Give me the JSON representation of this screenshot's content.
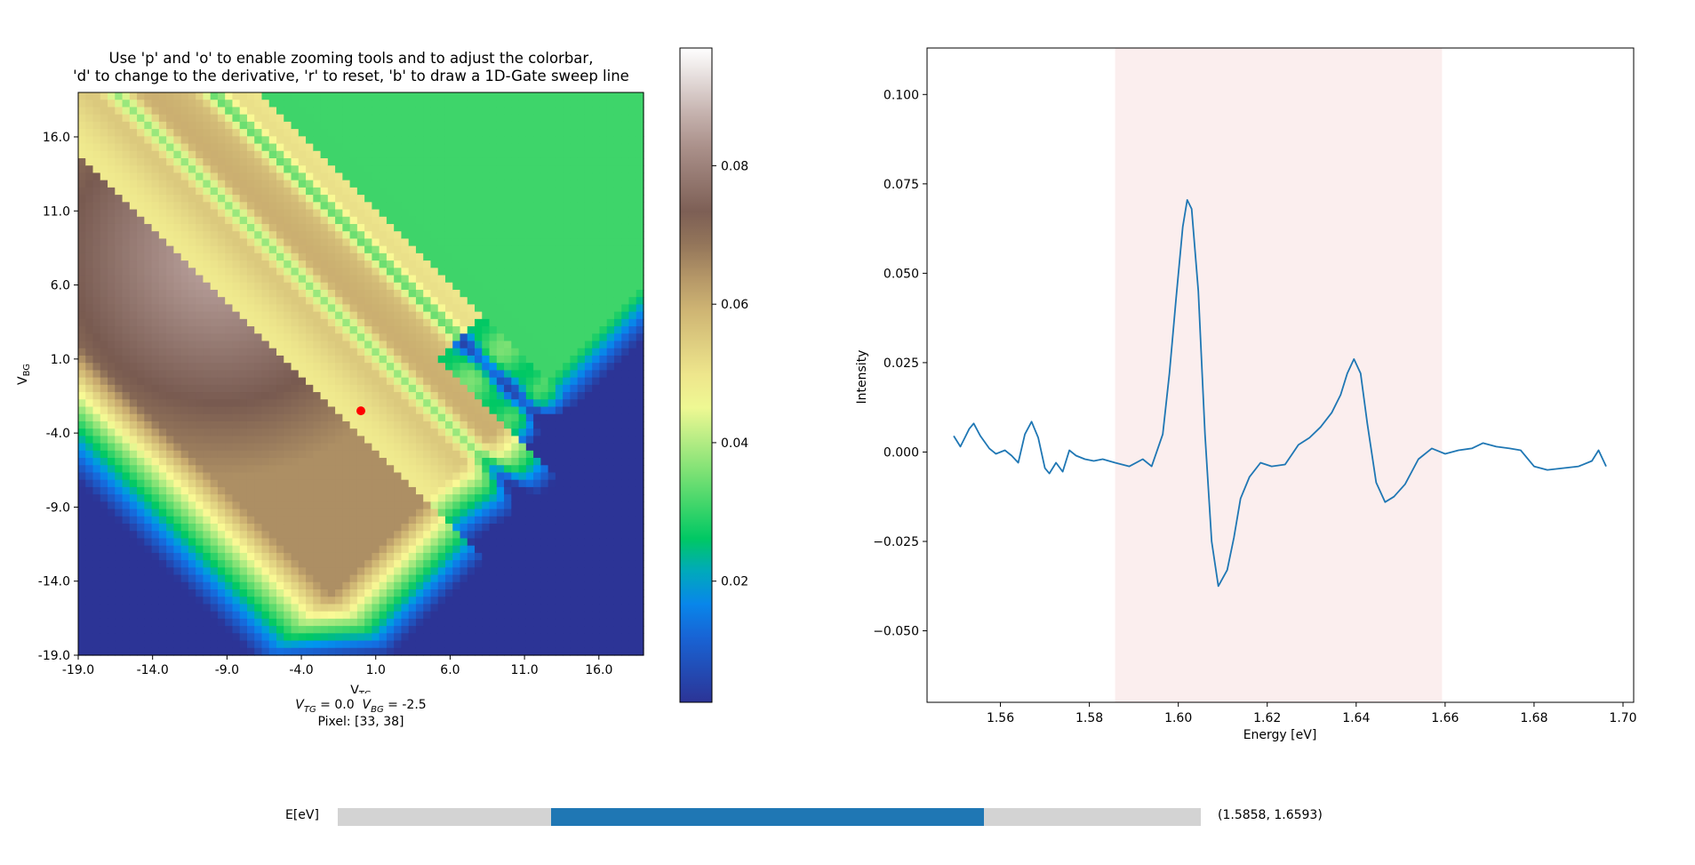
{
  "heatmap": {
    "title_line1": "Use 'p' and 'o' to enable zooming tools and to adjust the colorbar,",
    "title_line2": "'d' to change to the derivative, 'r' to reset, 'b' to draw a 1D-Gate sweep line",
    "xlabel": "V",
    "xlabel_sub": "TG",
    "ylabel": "V",
    "ylabel_sub": "BG",
    "xticks": [
      "-19.0",
      "-14.0",
      "-9.0",
      "-4.0",
      "1.0",
      "6.0",
      "11.0",
      "16.0"
    ],
    "yticks": [
      "16.0",
      "11.0",
      "6.0",
      "1.0",
      "-4.0",
      "-9.0",
      "-14.0",
      "-19.0"
    ],
    "xrange": [
      -19,
      19
    ],
    "yrange": [
      -19,
      19
    ],
    "grid_size": 77,
    "colormap": "terrain",
    "marker": {
      "vtg": 0.0,
      "vbg": -2.5,
      "color": "#ff0000"
    },
    "readout": {
      "vtg_label": "V",
      "vtg_sub": "TG",
      "vtg_value": " = 0.0",
      "vbg_label": "V",
      "vbg_sub": "BG",
      "vbg_value": " = -2.5",
      "pixel": "Pixel: [33, 38]"
    }
  },
  "colorbar": {
    "ticks": [
      "0.02",
      "0.04",
      "0.06",
      "0.08"
    ],
    "range": [
      0.0025,
      0.097
    ]
  },
  "chart_data": {
    "type": "line",
    "xlabel": "Energy [eV]",
    "ylabel": "Intensity",
    "xticks": [
      "1.56",
      "1.58",
      "1.60",
      "1.62",
      "1.64",
      "1.66",
      "1.68",
      "1.70"
    ],
    "yticks": [
      "0.100",
      "0.075",
      "0.050",
      "0.025",
      "0.000",
      "−0.025",
      "−0.050"
    ],
    "xlim": [
      1.5435,
      1.7024
    ],
    "ylim": [
      -0.07,
      0.113
    ],
    "highlight_span": [
      1.5858,
      1.6593
    ],
    "series": [
      {
        "color": "#1f77b4",
        "x": [
          1.5495,
          1.551,
          1.552,
          1.553,
          1.554,
          1.5555,
          1.5575,
          1.559,
          1.561,
          1.5625,
          1.564,
          1.5655,
          1.567,
          1.5685,
          1.57,
          1.571,
          1.5725,
          1.574,
          1.5755,
          1.577,
          1.579,
          1.581,
          1.583,
          1.5858,
          1.589,
          1.592,
          1.594,
          1.5965,
          1.598,
          1.5995,
          1.601,
          1.602,
          1.603,
          1.6045,
          1.606,
          1.6075,
          1.609,
          1.611,
          1.6125,
          1.614,
          1.616,
          1.6185,
          1.621,
          1.624,
          1.627,
          1.6295,
          1.632,
          1.6345,
          1.6365,
          1.638,
          1.6395,
          1.641,
          1.6425,
          1.6445,
          1.6465,
          1.6485,
          1.651,
          1.654,
          1.657,
          1.66,
          1.663,
          1.666,
          1.6685,
          1.6715,
          1.6745,
          1.677,
          1.68,
          1.683,
          1.6865,
          1.69,
          1.693,
          1.6945,
          1.6962
        ],
        "y": [
          0.0045,
          0.0015,
          0.004,
          0.0065,
          0.008,
          0.0045,
          0.001,
          -0.0005,
          0.0005,
          -0.001,
          -0.003,
          0.005,
          0.0085,
          0.004,
          -0.0045,
          -0.006,
          -0.003,
          -0.0055,
          0.0005,
          -0.001,
          -0.002,
          -0.0025,
          -0.002,
          -0.003,
          -0.004,
          -0.002,
          -0.004,
          0.005,
          0.022,
          0.043,
          0.063,
          0.0705,
          0.068,
          0.045,
          0.005,
          -0.025,
          -0.0375,
          -0.033,
          -0.024,
          -0.013,
          -0.007,
          -0.003,
          -0.004,
          -0.0035,
          0.002,
          0.004,
          0.007,
          0.011,
          0.016,
          0.022,
          0.026,
          0.022,
          0.008,
          -0.0085,
          -0.014,
          -0.0125,
          -0.009,
          -0.002,
          0.001,
          -0.0005,
          0.0005,
          0.001,
          0.0025,
          0.0015,
          0.001,
          0.0005,
          -0.004,
          -0.005,
          -0.0045,
          -0.004,
          -0.0025,
          0.0005,
          -0.004
        ]
      }
    ]
  },
  "slider": {
    "label": "E[eV]",
    "value_text": "(1.5858, 1.6593)",
    "min": 1.5495,
    "max": 1.6962,
    "range": [
      1.5858,
      1.6593
    ]
  }
}
